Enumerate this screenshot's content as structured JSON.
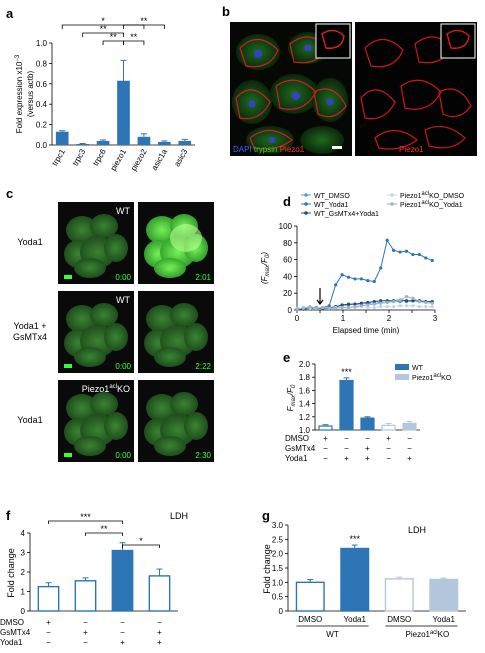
{
  "panels": {
    "a": {
      "label": "a",
      "ylabel_line1": "Fold expression x10",
      "ylabel_exp": "−3",
      "ylabel_line2": "(versus actb)",
      "sig": [
        "*",
        "**",
        "**",
        "**",
        "**"
      ],
      "chart_data": {
        "type": "bar",
        "categories": [
          "trpc1",
          "trpc3",
          "trpc6",
          "piezo1",
          "piezo2",
          "asic1a",
          "asic3"
        ],
        "values": [
          0.13,
          0.01,
          0.04,
          0.63,
          0.08,
          0.03,
          0.04
        ],
        "errors": [
          0.01,
          0.005,
          0.01,
          0.2,
          0.03,
          0.01,
          0.015
        ],
        "ylim": [
          0,
          1.0
        ],
        "yticks": [
          "0.0",
          "0.2",
          "0.4",
          "0.6",
          "0.8",
          "1.0"
        ],
        "color": "#2e75b6"
      }
    },
    "b": {
      "label": "b",
      "stain_dapi": "DAPI",
      "stain_trypsin": "trypsin",
      "stain_piezo": "Piezo1",
      "right_label": "Piezo1"
    },
    "c": {
      "label": "c",
      "rows": [
        {
          "label_line1": "Yoda1",
          "label_line2": "",
          "cond": "WT",
          "cond_sup": "",
          "cond_suffix": "",
          "t0": "0:00",
          "t1": "2:01"
        },
        {
          "label_line1": "Yoda1 +",
          "label_line2": "GsMTx4",
          "cond": "WT",
          "cond_sup": "",
          "cond_suffix": "",
          "t0": "0:00",
          "t1": "2:22"
        },
        {
          "label_line1": "Yoda1",
          "label_line2": "",
          "cond": "Piezo1",
          "cond_sup": "acl",
          "cond_suffix": "KO",
          "t0": "0:00",
          "t1": "2:30"
        }
      ]
    },
    "d": {
      "label": "d",
      "legend": [
        "WT_DMSO",
        "WT_Yoda1",
        "WT_GsMTx4+Yoda1",
        "Piezo1",
        "Piezo1"
      ],
      "legend_sup": "acl",
      "legend_suffix": [
        "KO_DMSO",
        "KO_Yoda1"
      ],
      "ylabel": "(F",
      "xlabel": "Elapsed time (min)",
      "chart_data": {
        "type": "line",
        "xlim": [
          0,
          3
        ],
        "ylim": [
          0,
          100
        ],
        "xticks": [
          "0",
          "0.5",
          "1",
          "1.5",
          "2",
          "2.5",
          "3"
        ],
        "yticks": [
          "0",
          "20",
          "40",
          "60",
          "80",
          "100"
        ],
        "x": [
          0,
          0.14,
          0.28,
          0.42,
          0.56,
          0.7,
          0.84,
          0.98,
          1.12,
          1.26,
          1.4,
          1.54,
          1.68,
          1.82,
          1.96,
          2.1,
          2.24,
          2.38,
          2.52,
          2.66,
          2.8,
          2.94
        ],
        "series": [
          {
            "name": "WT_DMSO",
            "color": "#5b9bd5",
            "values": [
              2,
              3,
              2,
              3,
              2,
              3,
              4,
              5,
              6,
              7,
              7,
              8,
              8,
              9,
              9,
              10,
              10,
              10,
              11,
              10,
              10,
              10
            ]
          },
          {
            "name": "WT_Yoda1",
            "color": "#2e75b6",
            "values": [
              1,
              2,
              3,
              2,
              3,
              5,
              30,
              42,
              39,
              37,
              37,
              35,
              34,
              50,
              83,
              71,
              69,
              70,
              66,
              66,
              62,
              59
            ]
          },
          {
            "name": "WT_GsMTx4+Yoda1",
            "color": "#1f4e79",
            "values": [
              1,
              1,
              2,
              2,
              2,
              2,
              4,
              6,
              7,
              7,
              8,
              9,
              10,
              11,
              11,
              11,
              12,
              11,
              11,
              11,
              10,
              10
            ]
          },
          {
            "name": "Piezo1KO_DMSO",
            "color": "#bdd7ee",
            "values": [
              2,
              3,
              2,
              2,
              3,
              2,
              3,
              3,
              2,
              3,
              4,
              3,
              3,
              4,
              4,
              4,
              5,
              5,
              5,
              4,
              4,
              4
            ]
          },
          {
            "name": "Piezo1KO_Yoda1",
            "color": "#9db3cf",
            "values": [
              1,
              2,
              4,
              2,
              3,
              2,
              2,
              3,
              3,
              4,
              5,
              6,
              7,
              8,
              9,
              10,
              12,
              16,
              14,
              10,
              9,
              8
            ]
          }
        ],
        "arrow_x": 0.5
      }
    },
    "e": {
      "label": "e",
      "ylabel": "F",
      "legend": [
        "WT",
        "Piezo1"
      ],
      "legend_sup": "acl",
      "legend_suffix": "KO",
      "sig": "***",
      "rowlabels": [
        "DMSO",
        "GsMTx4",
        "Yoda1"
      ],
      "signs": [
        [
          "+",
          "−",
          "−",
          "+",
          "−"
        ],
        [
          "−",
          "−",
          "+",
          "−",
          "−"
        ],
        [
          "−",
          "+",
          "+",
          "−",
          "+"
        ]
      ],
      "chart_data": {
        "type": "bar",
        "values": [
          1.06,
          1.75,
          1.18,
          1.07,
          1.1
        ],
        "errors": [
          0.02,
          0.04,
          0.02,
          0.03,
          0.03
        ],
        "styles": [
          "outline",
          "filled",
          "filled",
          "outline",
          "filled"
        ],
        "colors": [
          "#2e75b6",
          "#2e75b6",
          "#2e75b6",
          "#b4c7dc",
          "#b4c7dc"
        ],
        "ylim": [
          1.0,
          2.0
        ],
        "yticks": [
          "1.0",
          "1.2",
          "1.4",
          "1.6",
          "1.8",
          "2.0"
        ]
      }
    },
    "f": {
      "label": "f",
      "ylabel": "Fold change",
      "title": "LDH",
      "sig": [
        "***",
        "**",
        "*"
      ],
      "rowlabels": [
        "DMSO",
        "GsMTx4",
        "Yoda1"
      ],
      "signs": [
        [
          "+",
          "−",
          "−",
          "−"
        ],
        [
          "−",
          "+",
          "−",
          "+"
        ],
        [
          "−",
          "−",
          "+",
          "+"
        ]
      ],
      "chart_data": {
        "type": "bar",
        "values": [
          1.25,
          1.55,
          3.1,
          1.8
        ],
        "errors": [
          0.2,
          0.15,
          0.4,
          0.35
        ],
        "styles": [
          "outline",
          "outline",
          "filled",
          "outline"
        ],
        "color": "#2e75b6",
        "ylim": [
          0,
          4
        ],
        "yticks": [
          "0",
          "1",
          "2",
          "3",
          "4"
        ]
      }
    },
    "g": {
      "label": "g",
      "ylabel": "Fold change",
      "title": "LDH",
      "sig": "***",
      "categories": [
        "DMSO",
        "Yoda1",
        "DMSO",
        "Yoda1"
      ],
      "groups": [
        "WT",
        "Piezo1"
      ],
      "group_sup": "acl",
      "group_suffix": "KO",
      "chart_data": {
        "type": "bar",
        "values": [
          1.0,
          2.18,
          1.12,
          1.1
        ],
        "errors": [
          0.1,
          0.12,
          0.06,
          0.05
        ],
        "styles": [
          "outline",
          "filled",
          "outline",
          "filled"
        ],
        "colors": [
          "#2e75b6",
          "#2e75b6",
          "#b4c7dc",
          "#b4c7dc"
        ],
        "ylim": [
          0,
          3
        ],
        "yticks": [
          "0",
          "0.5",
          "1.0",
          "1.5",
          "2.0",
          "2.5",
          "3.0"
        ]
      }
    }
  }
}
